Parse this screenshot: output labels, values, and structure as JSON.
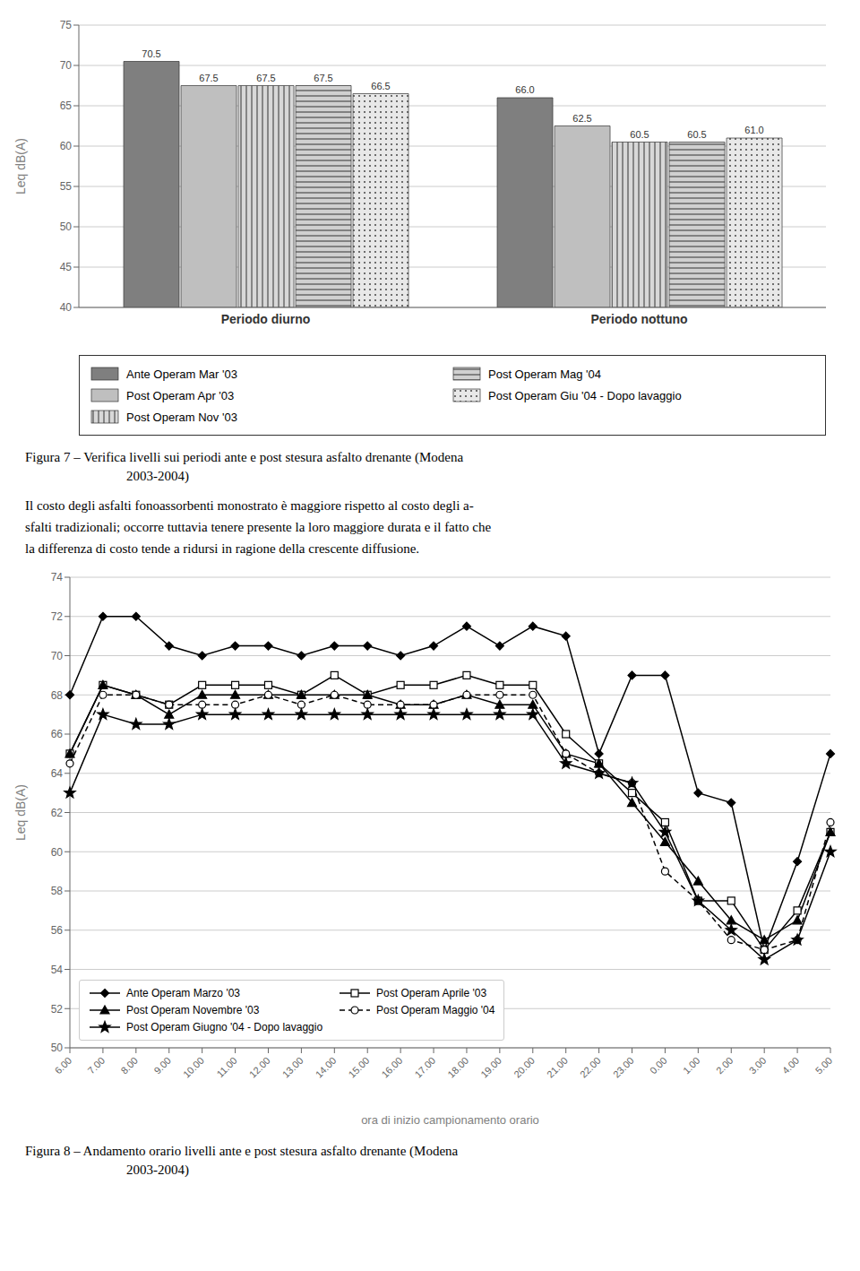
{
  "chart_data": [
    {
      "type": "bar",
      "categories": [
        "Periodo diurno",
        "Periodo nottuno"
      ],
      "series": [
        {
          "name": "Ante Operam Mar '03",
          "color": "#7f7f7f",
          "values": [
            70.5,
            66.0
          ],
          "value_labels": [
            "70.5",
            "66.0"
          ]
        },
        {
          "name": "Post Operam Apr '03",
          "color": "#bfbfbf",
          "values": [
            67.5,
            62.5
          ],
          "value_labels": [
            "67.5",
            "62.5"
          ]
        },
        {
          "name": "Post Operam Nov '03",
          "color": "#d8d8d8",
          "values": [
            67.5,
            60.5
          ],
          "value_labels": [
            "67.5",
            "60.5"
          ]
        },
        {
          "name": "Post Operam Mag '04",
          "color": "#d0d0d0",
          "values": [
            67.5,
            60.5
          ],
          "value_labels": [
            "67.5",
            "60.5"
          ]
        },
        {
          "name": "Post Operam Giu '04 - Dopo lavaggio",
          "color": "#e8e8e8",
          "values": [
            66.5,
            61.0
          ],
          "value_labels": [
            "66.5",
            "61.0"
          ]
        }
      ],
      "ylim": [
        40,
        75
      ],
      "yticks": [
        40,
        45,
        50,
        55,
        60,
        65,
        70,
        75
      ],
      "ylabel": "Leq dB(A)",
      "grid": true,
      "legend": "bottom",
      "data_labels": true,
      "annotations": [
        "Figura 7 – Verifica livelli sui periodi ante e post stesura asfalto drenante (Modena",
        "2003-2004)",
        "Il costo degli asfalti fonoassorbenti monostrato è maggiore rispetto al costo degli a-",
        "sfalti tradizionali; occorre tuttavia tenere presente la loro maggiore durata e il fatto che",
        "la differenza di costo tende a ridursi in ragione della crescente diffusione."
      ]
    },
    {
      "type": "line",
      "categories": [
        "6.00",
        "7.00",
        "8.00",
        "9.00",
        "10.00",
        "11.00",
        "12.00",
        "13.00",
        "14.00",
        "15.00",
        "16.00",
        "17.00",
        "18.00",
        "19.00",
        "20.00",
        "21.00",
        "22.00",
        "23.00",
        "0.00",
        "1.00",
        "2.00",
        "3.00",
        "4.00",
        "5.00"
      ],
      "series": [
        {
          "name": "Ante Operam Marzo '03",
          "color": "#000000",
          "marker": "diamond",
          "line_style": "solid",
          "values": [
            68.0,
            72.0,
            72.0,
            70.5,
            70.0,
            70.5,
            70.5,
            70.0,
            70.5,
            70.5,
            70.0,
            70.5,
            71.5,
            70.5,
            71.5,
            71.0,
            65.0,
            69.0,
            69.0,
            63.0,
            62.5,
            55.0,
            59.5,
            65.0
          ]
        },
        {
          "name": "Post Operam Aprile '03",
          "color": "#000000",
          "marker": "square_open",
          "line_style": "solid",
          "values": [
            65.0,
            68.5,
            68.0,
            67.5,
            68.5,
            68.5,
            68.5,
            68.0,
            69.0,
            68.0,
            68.5,
            68.5,
            69.0,
            68.5,
            68.5,
            66.0,
            64.5,
            63.0,
            61.5,
            57.5,
            57.5,
            55.0,
            57.0,
            61.0
          ]
        },
        {
          "name": "Post Operam Novembre '03",
          "color": "#000000",
          "marker": "triangle",
          "line_style": "solid",
          "values": [
            65.0,
            68.5,
            68.0,
            67.0,
            68.0,
            68.0,
            68.0,
            68.0,
            68.0,
            68.0,
            67.5,
            67.5,
            68.0,
            67.5,
            67.5,
            65.0,
            64.5,
            62.5,
            60.5,
            58.5,
            56.5,
            55.5,
            56.5,
            61.0
          ]
        },
        {
          "name": "Post Operam Maggio '04",
          "color": "#000000",
          "marker": "circle_open",
          "line_style": "dashed",
          "values": [
            64.5,
            68.0,
            68.0,
            67.5,
            67.5,
            67.5,
            68.0,
            67.5,
            68.0,
            67.5,
            67.5,
            67.5,
            68.0,
            68.0,
            68.0,
            65.0,
            64.0,
            63.5,
            59.0,
            57.5,
            55.5,
            55.0,
            55.5,
            61.5
          ]
        },
        {
          "name": "Post Operam Giugno '04 - Dopo lavaggio",
          "color": "#000000",
          "marker": "star",
          "line_style": "solid",
          "values": [
            63.0,
            67.0,
            66.5,
            66.5,
            67.0,
            67.0,
            67.0,
            67.0,
            67.0,
            67.0,
            67.0,
            67.0,
            67.0,
            67.0,
            67.0,
            64.5,
            64.0,
            63.5,
            61.0,
            57.5,
            56.0,
            54.5,
            55.5,
            60.0
          ]
        }
      ],
      "ylim": [
        50,
        74
      ],
      "yticks": [
        50,
        52,
        54,
        56,
        58,
        60,
        62,
        64,
        66,
        68,
        70,
        72,
        74
      ],
      "ylabel": "Leq dB(A)",
      "xlabel": "ora di inizio campionamento orario",
      "grid": true,
      "legend": "lower left",
      "annotations": [
        "Figura 8 – Andamento orario livelli ante e post stesura asfalto drenante (Modena",
        "2003-2004)"
      ]
    }
  ]
}
